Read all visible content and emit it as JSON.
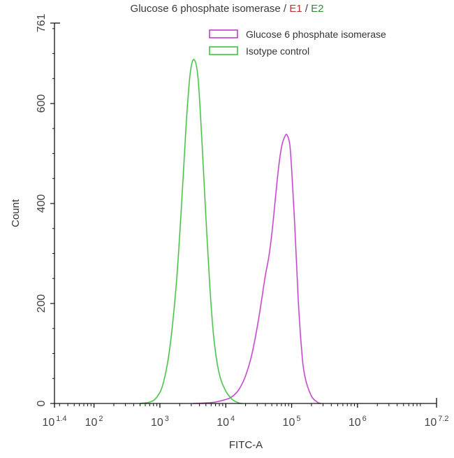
{
  "chart_data": {
    "type": "line",
    "title": "Glucose 6 phosphate isomerase / E1 / E2",
    "title_parts": {
      "main": "Glucose 6 phosphate isomerase",
      "sep1": " / ",
      "e1": "E1",
      "sep2": " / ",
      "e2": "E2"
    },
    "xlabel": "FITC-A",
    "ylabel": "Count",
    "xscale": "log10",
    "xlim_log10": [
      1.4,
      7.2
    ],
    "ylim": [
      0,
      761
    ],
    "x_ticks": [
      {
        "base": "10",
        "exp": "1.4",
        "log": 1.4
      },
      {
        "base": "10",
        "exp": "2",
        "log": 2
      },
      {
        "base": "10",
        "exp": "3",
        "log": 3
      },
      {
        "base": "10",
        "exp": "4",
        "log": 4
      },
      {
        "base": "10",
        "exp": "5",
        "log": 5
      },
      {
        "base": "10",
        "exp": "6",
        "log": 6
      },
      {
        "base": "10",
        "exp": "7.2",
        "log": 7.2
      }
    ],
    "y_ticks": [
      "0",
      "200",
      "400",
      "600",
      "761"
    ],
    "grid": false,
    "legend_position": "upper-right",
    "series": [
      {
        "name": "Glucose 6 phosphate isomerase",
        "color": "#c040c8",
        "peak_log10_x": 4.92,
        "peak_count": 537,
        "points_log10x_count": [
          [
            3.5,
            0
          ],
          [
            3.8,
            2
          ],
          [
            4.0,
            8
          ],
          [
            4.1,
            14
          ],
          [
            4.2,
            28
          ],
          [
            4.3,
            55
          ],
          [
            4.4,
            100
          ],
          [
            4.5,
            170
          ],
          [
            4.6,
            255
          ],
          [
            4.65,
            290
          ],
          [
            4.7,
            340
          ],
          [
            4.75,
            405
          ],
          [
            4.8,
            470
          ],
          [
            4.85,
            515
          ],
          [
            4.9,
            535
          ],
          [
            4.93,
            537
          ],
          [
            4.97,
            520
          ],
          [
            5.0,
            470
          ],
          [
            5.05,
            350
          ],
          [
            5.1,
            210
          ],
          [
            5.15,
            110
          ],
          [
            5.2,
            55
          ],
          [
            5.3,
            15
          ],
          [
            5.4,
            2
          ],
          [
            5.45,
            0
          ]
        ]
      },
      {
        "name": "Isotype control",
        "color": "#40c040",
        "peak_log10_x": 3.52,
        "peak_count": 688,
        "points_log10x_count": [
          [
            2.7,
            0
          ],
          [
            2.85,
            3
          ],
          [
            2.95,
            12
          ],
          [
            3.05,
            40
          ],
          [
            3.15,
            110
          ],
          [
            3.25,
            240
          ],
          [
            3.33,
            400
          ],
          [
            3.4,
            560
          ],
          [
            3.46,
            660
          ],
          [
            3.52,
            688
          ],
          [
            3.58,
            650
          ],
          [
            3.64,
            520
          ],
          [
            3.7,
            370
          ],
          [
            3.76,
            230
          ],
          [
            3.82,
            130
          ],
          [
            3.9,
            60
          ],
          [
            4.0,
            25
          ],
          [
            4.1,
            8
          ],
          [
            4.2,
            1
          ],
          [
            4.25,
            0
          ]
        ]
      }
    ]
  },
  "legend": {
    "items": [
      {
        "label": "Glucose 6 phosphate isomerase",
        "color": "#c040c8"
      },
      {
        "label": "Isotype control",
        "color": "#40c040"
      }
    ]
  }
}
